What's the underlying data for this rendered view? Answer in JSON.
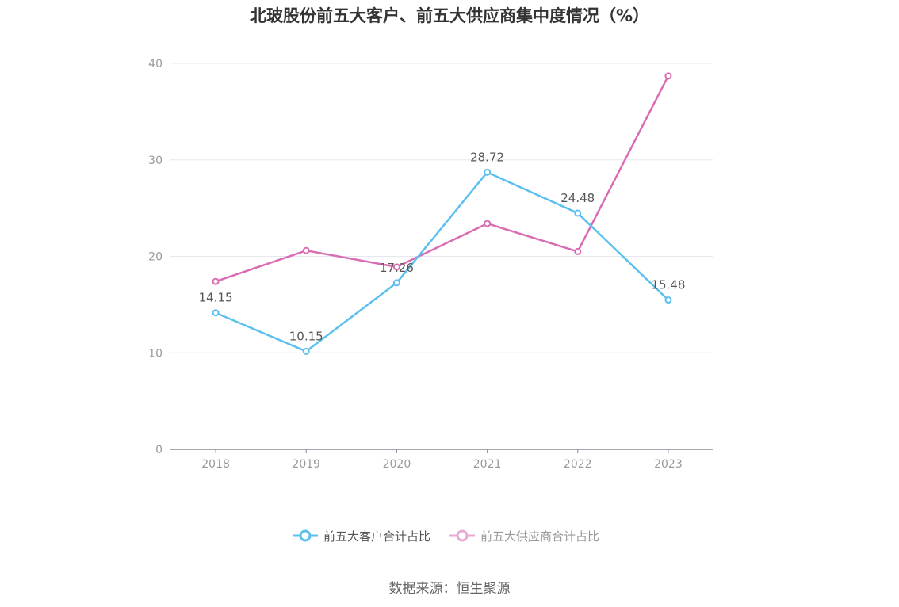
{
  "title": "北玻股份前五大客户、前五大供应商集中度情况（%）",
  "source": "数据来源：恒生聚源",
  "colors": {
    "customers": "#5bc0f0",
    "suppliers": "#d96cb2",
    "grid": "#e6e8f0",
    "axis": "#8a8a99",
    "tick_text": "#999999",
    "label_text": "#555555"
  },
  "chart_data": {
    "type": "line",
    "categories": [
      "2018",
      "2019",
      "2020",
      "2021",
      "2022",
      "2023"
    ],
    "ylim": [
      0,
      40
    ],
    "yticks": [
      0,
      10,
      20,
      30,
      40
    ],
    "grid": true,
    "legend_position": "bottom",
    "series": [
      {
        "name": "前五大客户合计占比",
        "values": [
          14.15,
          10.15,
          17.26,
          28.72,
          24.48,
          15.48
        ],
        "labels": [
          "14.15",
          "10.15",
          "17.26",
          "28.72",
          "24.48",
          "15.48"
        ]
      },
      {
        "name": "前五大供应商合计占比",
        "values": [
          17.4,
          20.6,
          18.9,
          23.4,
          20.5,
          38.7
        ]
      }
    ]
  }
}
